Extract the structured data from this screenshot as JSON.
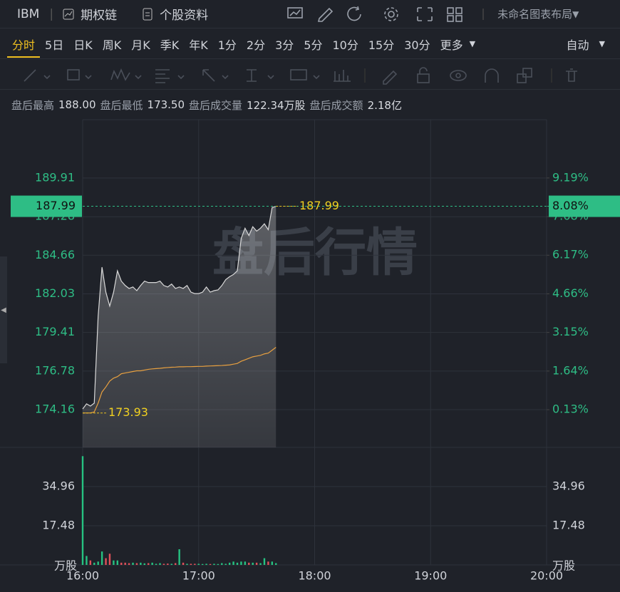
{
  "header": {
    "symbol": "IBM",
    "option_chain": "期权链",
    "stock_info": "个股资料",
    "layout_name": "未命名图表布局"
  },
  "tabs": {
    "periods": [
      "分时",
      "5日",
      "日K",
      "周K",
      "月K",
      "季K",
      "年K",
      "1分",
      "2分",
      "3分",
      "5分",
      "10分",
      "15分",
      "30分",
      "更多"
    ],
    "active": 0,
    "scale_mode": "自动"
  },
  "stats": [
    {
      "label": "盘后最高",
      "value": "188.00"
    },
    {
      "label": "盘后最低",
      "value": "173.50"
    },
    {
      "label": "盘后成交量",
      "value": "122.34万股"
    },
    {
      "label": "盘后成交额",
      "value": "2.18亿"
    }
  ],
  "chart_data": {
    "type": "line",
    "watermark": "盘后行情",
    "x": [
      "16:00",
      "16:02",
      "16:04",
      "16:06",
      "16:08",
      "16:10",
      "16:12",
      "16:14",
      "16:16",
      "16:18",
      "16:20",
      "16:22",
      "16:24",
      "16:26",
      "16:28",
      "16:30",
      "16:32",
      "16:34",
      "16:36",
      "16:38",
      "16:40",
      "16:42",
      "16:44",
      "16:46",
      "16:48",
      "16:50",
      "16:52",
      "16:54",
      "16:56",
      "16:58",
      "17:00",
      "17:02",
      "17:04",
      "17:06",
      "17:08",
      "17:10",
      "17:12",
      "17:14",
      "17:16",
      "17:18",
      "17:20",
      "17:22",
      "17:24",
      "17:26",
      "17:28",
      "17:30",
      "17:32",
      "17:34",
      "17:36",
      "17:38",
      "17:40"
    ],
    "xlim": [
      "16:00",
      "20:00"
    ],
    "xticks": [
      "16:00",
      "17:00",
      "18:00",
      "19:00",
      "20:00"
    ],
    "series": [
      {
        "name": "价格",
        "color": "#d9d9d9",
        "values": [
          174.2,
          174.55,
          174.4,
          174.6,
          180.5,
          183.85,
          182.15,
          181.2,
          182.15,
          183.6,
          182.9,
          182.6,
          182.4,
          182.5,
          182.25,
          182.6,
          182.9,
          182.8,
          182.8,
          182.8,
          182.9,
          182.6,
          182.5,
          182.7,
          182.4,
          182.5,
          182.4,
          182.6,
          182.15,
          182.05,
          182.05,
          182.15,
          182.5,
          182.15,
          182.25,
          182.3,
          182.6,
          183.0,
          183.2,
          183.35,
          183.6,
          185.8,
          186.5,
          186.0,
          186.6,
          186.3,
          186.5,
          186.8,
          186.4,
          187.9,
          187.99
        ]
      },
      {
        "name": "均价",
        "color": "#e8a040",
        "values": [
          173.93,
          173.93,
          173.93,
          174.0,
          174.6,
          175.36,
          175.7,
          176.1,
          176.3,
          176.4,
          176.6,
          176.65,
          176.7,
          176.75,
          176.8,
          176.8,
          176.85,
          176.9,
          176.93,
          176.95,
          176.97,
          177.0,
          177.02,
          177.04,
          177.05,
          177.07,
          177.07,
          177.08,
          177.08,
          177.09,
          177.1,
          177.1,
          177.12,
          177.13,
          177.14,
          177.15,
          177.16,
          177.18,
          177.2,
          177.25,
          177.3,
          177.45,
          177.55,
          177.65,
          177.75,
          177.8,
          177.85,
          177.95,
          178.0,
          178.2,
          178.4
        ]
      }
    ],
    "ylim": [
      171.59,
      193.88
    ],
    "yticks": [
      174.16,
      176.78,
      179.41,
      182.03,
      184.66,
      187.28,
      189.91
    ],
    "y2lim": [
      -1.345,
      11.47
    ],
    "y2ticks": [
      {
        "value": 0.13,
        "label": "0.13%"
      },
      {
        "value": 1.64,
        "label": "1.64%"
      },
      {
        "value": 3.15,
        "label": "3.15%"
      },
      {
        "value": 4.66,
        "label": "4.66%"
      },
      {
        "value": 6.17,
        "label": "6.17%"
      },
      {
        "value": 7.68,
        "label": "7.68%"
      },
      {
        "value": 9.19,
        "label": "9.19%"
      }
    ],
    "last_price": 187.99,
    "last_change": {
      "value": 8.08,
      "label": "8.08%"
    },
    "last_color": "#2ebd85",
    "volume": {
      "values": [
        48.5,
        4,
        2,
        1,
        1.5,
        6,
        3,
        5,
        2,
        2,
        1,
        1,
        0.8,
        1,
        0.8,
        1,
        0.7,
        0.8,
        1,
        0.5,
        0.8,
        0.5,
        0.6,
        0.5,
        0.8,
        7,
        1,
        0.5,
        0.5,
        0.5,
        0.5,
        0.4,
        0.5,
        0.4,
        0.5,
        0.4,
        0.8,
        0.5,
        1,
        1.5,
        1,
        1.5,
        1.5,
        1,
        1,
        1,
        0.8,
        3,
        1.5,
        1.5,
        0.8
      ],
      "ylim": [
        0,
        48.6
      ],
      "yticks": [
        17.48,
        34.96
      ],
      "unit": "万股",
      "up_color": "#26c281",
      "down_color": "#e0505a"
    },
    "grid": true
  }
}
